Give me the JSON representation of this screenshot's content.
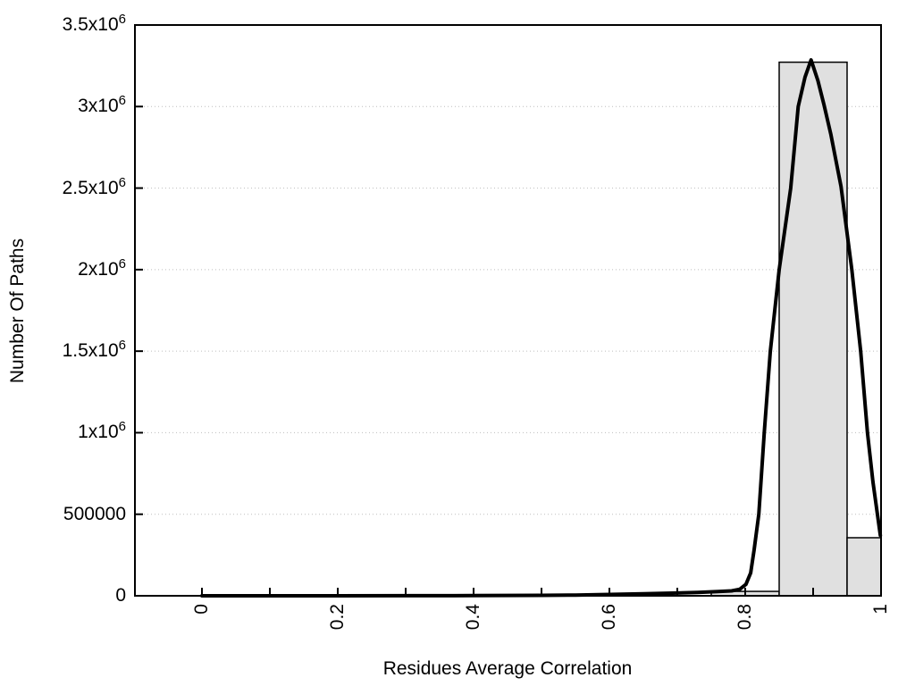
{
  "chart_data": {
    "type": "bar",
    "subtype": "histogram_with_fit_curve",
    "title": "",
    "xlabel": "Residues Average Correlation",
    "ylabel": "Number Of Paths",
    "xlim": [
      -0.1,
      1.0
    ],
    "ylim": [
      0,
      3500000
    ],
    "grid": "horizontal dotted lines at y major ticks",
    "legend": "none",
    "x_minor_tick_step": 0.1,
    "xticks": [
      {
        "label": "0",
        "value": 0
      },
      {
        "label": "0.2",
        "value": 0.2
      },
      {
        "label": "0.4",
        "value": 0.4
      },
      {
        "label": "0.6",
        "value": 0.6
      },
      {
        "label": "0.8",
        "value": 0.8
      },
      {
        "label": "1",
        "value": 1
      }
    ],
    "yticks": [
      {
        "main": "0",
        "sup": "",
        "value": 0
      },
      {
        "main": "500000",
        "sup": "",
        "value": 500000
      },
      {
        "main": "1x10",
        "sup": "6",
        "value": 1000000
      },
      {
        "main": "1.5x10",
        "sup": "6",
        "value": 1500000
      },
      {
        "main": "2x10",
        "sup": "6",
        "value": 2000000
      },
      {
        "main": "2.5x10",
        "sup": "6",
        "value": 2500000
      },
      {
        "main": "3x10",
        "sup": "6",
        "value": 3000000
      },
      {
        "main": "3.5x10",
        "sup": "6",
        "value": 3500000
      }
    ],
    "bars": [
      {
        "x0": 0.75,
        "x1": 0.85,
        "value": 27000
      },
      {
        "x0": 0.85,
        "x1": 0.95,
        "value": 3272000
      },
      {
        "x0": 0.95,
        "x1": 1.0,
        "value": 356000
      }
    ],
    "curve": {
      "name": "fit-curve",
      "peak": {
        "x": 0.897,
        "y": 3286000
      },
      "points": [
        [
          0.0,
          0
        ],
        [
          0.1,
          0
        ],
        [
          0.2,
          0
        ],
        [
          0.3,
          500
        ],
        [
          0.4,
          1000
        ],
        [
          0.5,
          2500
        ],
        [
          0.55,
          4500
        ],
        [
          0.6,
          8000
        ],
        [
          0.65,
          12000
        ],
        [
          0.7,
          17000
        ],
        [
          0.73,
          21000
        ],
        [
          0.76,
          26000
        ],
        [
          0.78,
          30000
        ],
        [
          0.792,
          40000
        ],
        [
          0.801,
          70000
        ],
        [
          0.808,
          140000
        ],
        [
          0.813,
          280000
        ],
        [
          0.82,
          500000
        ],
        [
          0.828,
          1000000
        ],
        [
          0.837,
          1500000
        ],
        [
          0.85,
          2000000
        ],
        [
          0.867,
          2500000
        ],
        [
          0.878,
          3000000
        ],
        [
          0.888,
          3180000
        ],
        [
          0.897,
          3286000
        ],
        [
          0.907,
          3160000
        ],
        [
          0.916,
          3010000
        ],
        [
          0.926,
          2830000
        ],
        [
          0.941,
          2510000
        ],
        [
          0.957,
          2000000
        ],
        [
          0.97,
          1500000
        ],
        [
          0.98,
          1000000
        ],
        [
          0.988,
          700000
        ],
        [
          0.999,
          370000
        ]
      ]
    },
    "colors": {
      "background": "#ffffff",
      "bar_fill": "#e0e0e0",
      "bar_border": "#000000",
      "curve": "#000000",
      "grid": "#bdbdbd",
      "axis": "#000000",
      "text": "#000000"
    }
  }
}
